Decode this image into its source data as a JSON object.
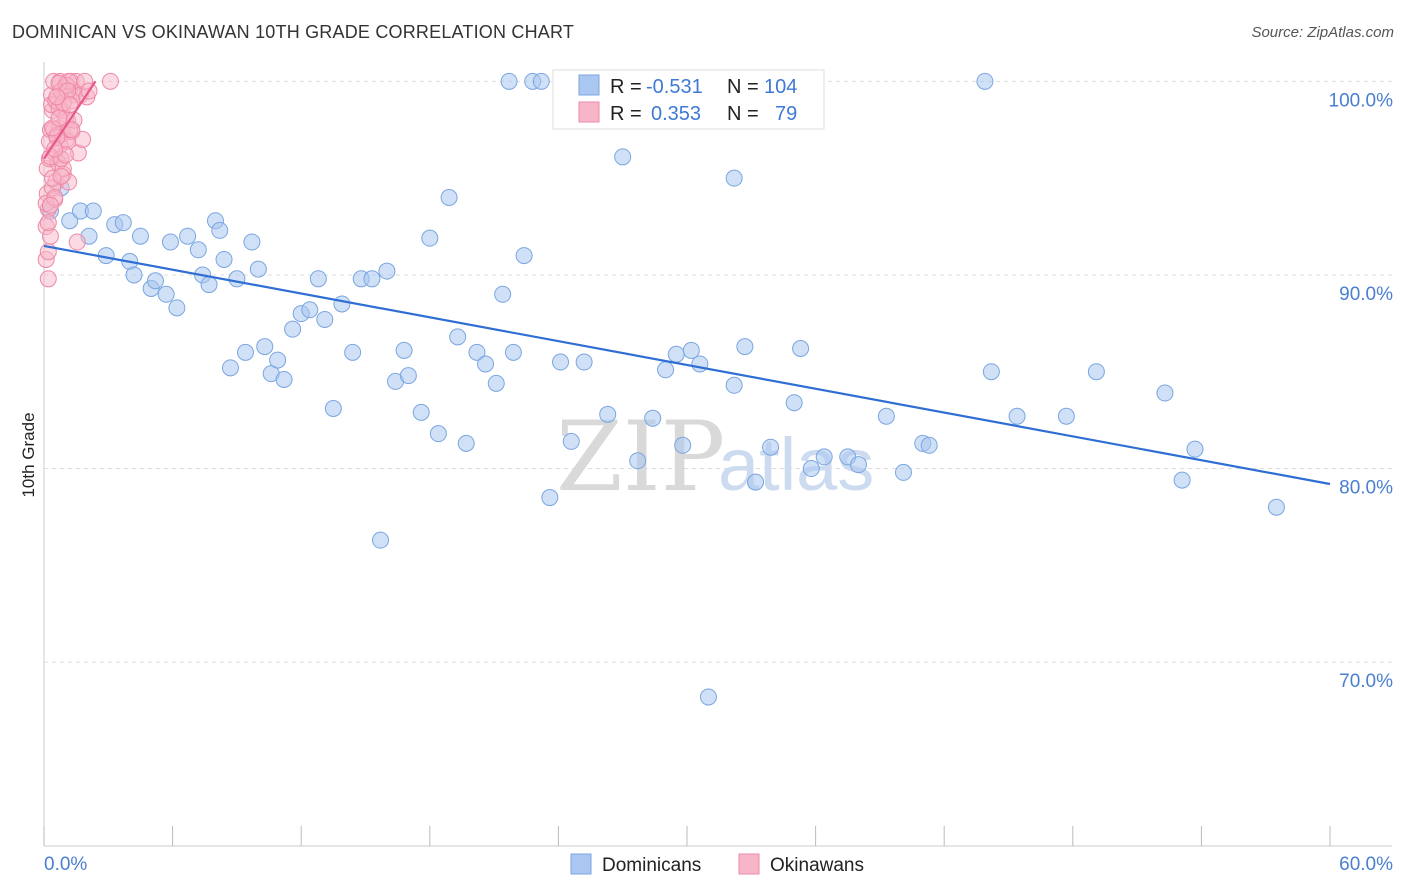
{
  "header": {
    "title": "DOMINICAN VS OKINAWAN 10TH GRADE CORRELATION CHART",
    "source": "Source: ZipAtlas.com"
  },
  "watermark": {
    "zip": "ZIP",
    "atlas": "atlas"
  },
  "legend_box": {
    "row1": {
      "r_label": "R =",
      "r_value": "-0.531",
      "n_label": "N =",
      "n_value": "104",
      "color": "#a9c7f0"
    },
    "row2": {
      "r_label": "R =",
      "r_value": "0.353",
      "n_label": "N =",
      "n_value": "79",
      "color": "#f7b6c8"
    }
  },
  "bottom_legend": {
    "items": [
      {
        "label": "Dominicans",
        "color": "#a9c7f0"
      },
      {
        "label": "Okinawans",
        "color": "#f7b6c8"
      }
    ]
  },
  "colors": {
    "blue_point_fill": "#a9c7f0",
    "blue_point_stroke": "#7aa6e0",
    "blue_line": "#2f6fd3",
    "pink_point_fill": "#f7b6c8",
    "pink_point_stroke": "#ee88a6",
    "pink_line": "#e8588a",
    "tick_text": "#4a7fd0"
  },
  "chart_data": {
    "type": "scatter",
    "title": "DOMINICAN VS OKINAWAN 10TH GRADE CORRELATION CHART",
    "xlabel": "",
    "ylabel": "10th Grade",
    "xlim": [
      0,
      60
    ],
    "ylim": [
      60.5,
      101
    ],
    "x_tick_labels": [
      {
        "value": 0,
        "label": "0.0%"
      },
      {
        "value": 60,
        "label": "60.0%"
      }
    ],
    "y_tick_labels": [
      {
        "value": 100,
        "label": "100.0%"
      },
      {
        "value": 90,
        "label": "90.0%"
      },
      {
        "value": 80,
        "label": "80.0%"
      },
      {
        "value": 70,
        "label": "70.0%"
      }
    ],
    "grid": true,
    "legend_position": "bottom",
    "series": [
      {
        "name": "Dominicans",
        "x": [
          0.3,
          0.8,
          1.2,
          1.7,
          2.1,
          2.3,
          2.9,
          3.3,
          3.7,
          4.0,
          4.2,
          4.5,
          5.0,
          5.2,
          5.7,
          5.9,
          6.2,
          6.7,
          7.2,
          7.4,
          7.7,
          8.0,
          8.2,
          8.4,
          8.7,
          9.0,
          9.4,
          9.7,
          10.0,
          10.3,
          10.6,
          10.9,
          11.2,
          11.6,
          12.0,
          12.4,
          12.8,
          13.1,
          13.5,
          13.9,
          14.4,
          14.8,
          15.3,
          15.7,
          16.0,
          16.4,
          16.8,
          17.0,
          17.6,
          18.0,
          18.4,
          18.9,
          19.3,
          19.7,
          20.2,
          20.6,
          21.1,
          21.4,
          21.9,
          22.4,
          22.8,
          23.2,
          23.6,
          24.1,
          24.6,
          25.2,
          25.8,
          26.3,
          27.0,
          27.7,
          28.4,
          29.0,
          29.5,
          29.8,
          30.2,
          30.6,
          31.0,
          31.4,
          32.2,
          32.7,
          33.2,
          33.9,
          35.0,
          35.3,
          36.4,
          37.5,
          38.0,
          39.3,
          40.1,
          41.0,
          41.3,
          43.9,
          44.2,
          45.4,
          47.7,
          49.1,
          52.3,
          53.1,
          53.7,
          57.5,
          26.0,
          21.7,
          35.8,
          32.2
        ],
        "y": [
          93.3,
          94.5,
          92.8,
          93.3,
          92.0,
          93.3,
          91.0,
          92.6,
          92.7,
          90.7,
          90.0,
          92.0,
          89.3,
          89.7,
          89.0,
          91.7,
          88.3,
          92.0,
          91.3,
          90.0,
          89.5,
          92.8,
          92.3,
          90.8,
          85.2,
          89.8,
          86.0,
          91.7,
          90.3,
          86.3,
          84.9,
          85.6,
          84.6,
          87.2,
          88.0,
          88.2,
          89.8,
          87.7,
          83.1,
          88.5,
          86.0,
          89.8,
          89.8,
          76.3,
          90.2,
          84.5,
          86.1,
          84.8,
          82.9,
          91.9,
          81.8,
          94.0,
          86.8,
          81.3,
          86.0,
          85.4,
          84.4,
          89.0,
          86.0,
          91.0,
          100.0,
          100.0,
          78.5,
          85.5,
          81.4,
          85.5,
          100.0,
          82.8,
          96.1,
          80.4,
          82.6,
          85.1,
          85.9,
          81.2,
          86.1,
          85.4,
          68.2,
          100.0,
          84.3,
          86.3,
          79.3,
          81.1,
          83.4,
          86.2,
          80.6,
          80.6,
          80.2,
          82.7,
          79.8,
          81.3,
          81.2,
          100.0,
          85.0,
          82.7,
          82.7,
          85.0,
          83.9,
          79.4,
          81.0,
          78.0,
          100.0,
          100.0,
          80.0,
          95.0
        ],
        "trend": {
          "x": [
            0,
            60
          ],
          "y": [
            91.5,
            79.2
          ]
        }
      },
      {
        "name": "Okinawans",
        "x": [
          0.1,
          0.15,
          0.2,
          0.25,
          0.3,
          0.35,
          0.4,
          0.45,
          0.5,
          0.55,
          0.6,
          0.65,
          0.7,
          0.75,
          0.8,
          0.85,
          0.9,
          1.0,
          1.05,
          1.1,
          1.15,
          1.2,
          1.25,
          1.3,
          1.35,
          1.4,
          1.5,
          1.55,
          1.6,
          1.7,
          1.8,
          1.9,
          2.0,
          2.1,
          3.1,
          0.1,
          0.15,
          0.2,
          0.25,
          0.3,
          0.35,
          0.4,
          0.45,
          0.5,
          0.55,
          0.6,
          0.65,
          0.7,
          0.75,
          0.8,
          0.85,
          0.9,
          1.0,
          1.05,
          1.1,
          1.15,
          1.2,
          1.3,
          1.4,
          0.1,
          0.2,
          0.3,
          0.4,
          0.5,
          0.6,
          0.7,
          0.8,
          0.9,
          1.0,
          1.1,
          1.2,
          1.3,
          0.2,
          0.3,
          0.4,
          0.5,
          0.6,
          0.7,
          0.8
        ],
        "y": [
          90.8,
          95.5,
          93.4,
          96.9,
          97.5,
          99.3,
          98.5,
          100.0,
          96.3,
          94.8,
          97.2,
          98.9,
          97.6,
          100.0,
          96.0,
          98.5,
          95.2,
          99.8,
          97.0,
          98.0,
          94.8,
          99.6,
          100.0,
          97.4,
          99.3,
          99.5,
          100.0,
          91.7,
          96.3,
          99.3,
          97.0,
          100.0,
          99.2,
          99.5,
          100.0,
          92.5,
          94.2,
          89.8,
          96.0,
          92.0,
          98.8,
          94.5,
          97.5,
          93.9,
          99.0,
          97.2,
          95.8,
          98.6,
          96.7,
          99.5,
          97.3,
          95.5,
          98.1,
          99.8,
          96.9,
          100.0,
          97.5,
          99.0,
          98.0,
          93.7,
          92.7,
          96.1,
          95.0,
          94.0,
          97.1,
          99.9,
          96.0,
          98.9,
          96.2,
          99.5,
          98.8,
          97.5,
          91.2,
          93.6,
          97.6,
          96.5,
          99.2,
          98.1,
          95.1
        ],
        "trend": {
          "x": [
            0,
            2.4
          ],
          "y": [
            96.0,
            100.0
          ]
        }
      }
    ]
  }
}
